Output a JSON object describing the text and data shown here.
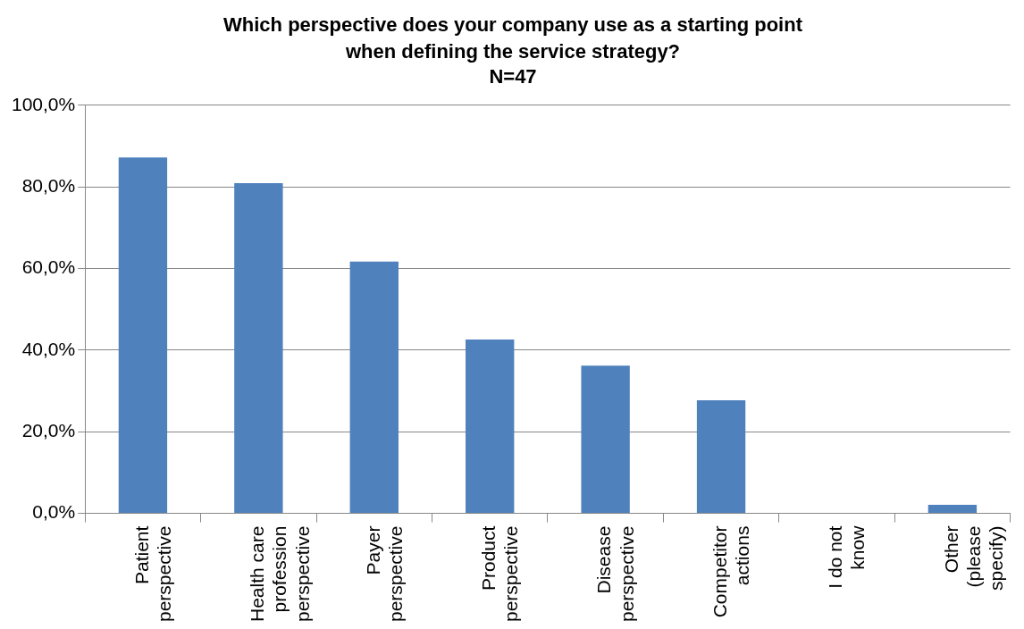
{
  "chart_data": {
    "type": "bar",
    "title": "Which perspective does your company use as a starting point when defining the service strategy?",
    "subtitle": "N=47",
    "categories": [
      "Patient perspective",
      "Health care profession perspective",
      "Payer perspective",
      "Product perspective",
      "Disease perspective",
      "Competitor actions",
      "I do not know",
      "Other (please specify)"
    ],
    "values": [
      87.2,
      80.9,
      61.7,
      42.6,
      36.2,
      27.7,
      0,
      2.1
    ],
    "color": "#4f81bd",
    "ylim": [
      0,
      100
    ],
    "yticks": [
      {
        "value": 0,
        "label": "0,0%"
      },
      {
        "value": 20,
        "label": "20,0%"
      },
      {
        "value": 40,
        "label": "40,0%"
      },
      {
        "value": 60,
        "label": "60,0%"
      },
      {
        "value": 80,
        "label": "80,0%"
      },
      {
        "value": 100,
        "label": "100,0%"
      }
    ],
    "grid": "y",
    "legend": false
  }
}
